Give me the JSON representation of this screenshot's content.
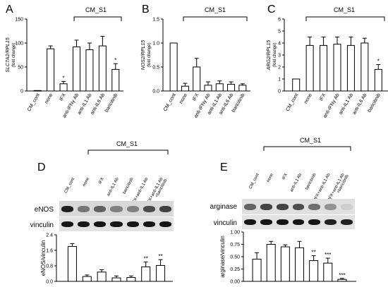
{
  "chart_data": [
    {
      "panel": "A",
      "type": "bar",
      "ylabel_gene": "SLC7A2/RPL15",
      "ylabel_unit": "(fold change)",
      "group_label": "CM_S1",
      "categories": [
        "CM_cont",
        "none",
        "IFX",
        "anti-IFNγ Ab",
        "anti-IL1 Ab",
        "anti-IL6 Ab",
        "baricitinib"
      ],
      "values": [
        1,
        88,
        15,
        92,
        86,
        94,
        45
      ],
      "errors": [
        0,
        6,
        5,
        14,
        14,
        20,
        12
      ],
      "significance": [
        "",
        "",
        "*",
        "",
        "",
        "",
        "*"
      ],
      "ylim": [
        0,
        150
      ],
      "yticks": [
        "0",
        "50",
        "100",
        "150"
      ]
    },
    {
      "panel": "B",
      "type": "bar",
      "ylabel_gene": "NOS2/RPL15",
      "ylabel_unit": "(fold change)",
      "group_label": "CM_S1",
      "categories": [
        "CM_cont",
        "none",
        "IFX",
        "anti-IFNγ Ab",
        "anti-IL1 Ab",
        "anti-IL6 Ab",
        "baricitinib"
      ],
      "values": [
        1.0,
        0.1,
        0.5,
        0.12,
        0.15,
        0.14,
        0.12
      ],
      "errors": [
        0,
        0.06,
        0.18,
        0.07,
        0.06,
        0.05,
        0.03
      ],
      "significance": [
        "",
        "",
        "",
        "",
        "",
        "",
        ""
      ],
      "ylim": [
        0,
        1.5
      ],
      "yticks": [
        "0.0",
        "0.5",
        "1.0",
        "1.5"
      ]
    },
    {
      "panel": "C",
      "type": "bar",
      "ylabel_gene": "ARG2/RPL15",
      "ylabel_unit": "(fold change)",
      "group_label": "CM_S1",
      "categories": [
        "CM_cont",
        "none",
        "IFX",
        "anti-IFNγ Ab",
        "anti-IL1 Ab",
        "anti-IL6 Ab",
        "baricitinib"
      ],
      "values": [
        1.0,
        3.8,
        3.8,
        3.9,
        3.8,
        4.0,
        1.8
      ],
      "errors": [
        0,
        0.7,
        0.7,
        0.6,
        0.7,
        0.4,
        0.4
      ],
      "significance": [
        "",
        "",
        "",
        "",
        "",
        "",
        "*"
      ],
      "ylim": [
        0,
        6
      ],
      "yticks": [
        "0",
        "1",
        "2",
        "3",
        "4",
        "5",
        "6"
      ]
    },
    {
      "panel": "D",
      "type": "bar",
      "ylabel": "eNOS/vinculin",
      "group_label": "CM_S1",
      "categories": [
        "CM_cont",
        "none",
        "IFX",
        "anti-IL1 Ab",
        "baricitinib",
        "IFX+anti-IL1 Ab",
        "IFX+anti-IL1 Ab +baricitinib"
      ],
      "values": [
        1.8,
        0.25,
        0.48,
        0.18,
        0.2,
        0.75,
        0.82
      ],
      "errors": [
        0.15,
        0.08,
        0.12,
        0.1,
        0.08,
        0.25,
        0.3
      ],
      "significance": [
        "",
        "",
        "",
        "",
        "",
        "**",
        "**"
      ],
      "ylim": [
        0,
        2.4
      ],
      "yticks": [
        "0.0",
        "0.8",
        "1.6",
        "2.4"
      ],
      "blot_labels": [
        "eNOS",
        "vinculin"
      ]
    },
    {
      "panel": "E",
      "type": "bar",
      "ylabel": "arginase/vinculin",
      "group_label": "CM_S1",
      "categories": [
        "CM_cont",
        "none",
        "IFX",
        "anti-IL1 Ab",
        "baricitinib",
        "IFX+anti-IL1 Ab",
        "IFX+anti-IL1 Ab +baricitinib"
      ],
      "values": [
        0.45,
        0.75,
        0.7,
        0.68,
        0.42,
        0.37,
        0.04
      ],
      "errors": [
        0.13,
        0.06,
        0.04,
        0.13,
        0.1,
        0.1,
        0.02
      ],
      "significance": [
        "",
        "",
        "",
        "",
        "**",
        "***",
        "***"
      ],
      "ylim": [
        0,
        1.0
      ],
      "yticks": [
        "0.00",
        "0.25",
        "0.50",
        "0.75",
        "1.00"
      ],
      "blot_labels": [
        "arginase",
        "vinculin"
      ]
    }
  ]
}
